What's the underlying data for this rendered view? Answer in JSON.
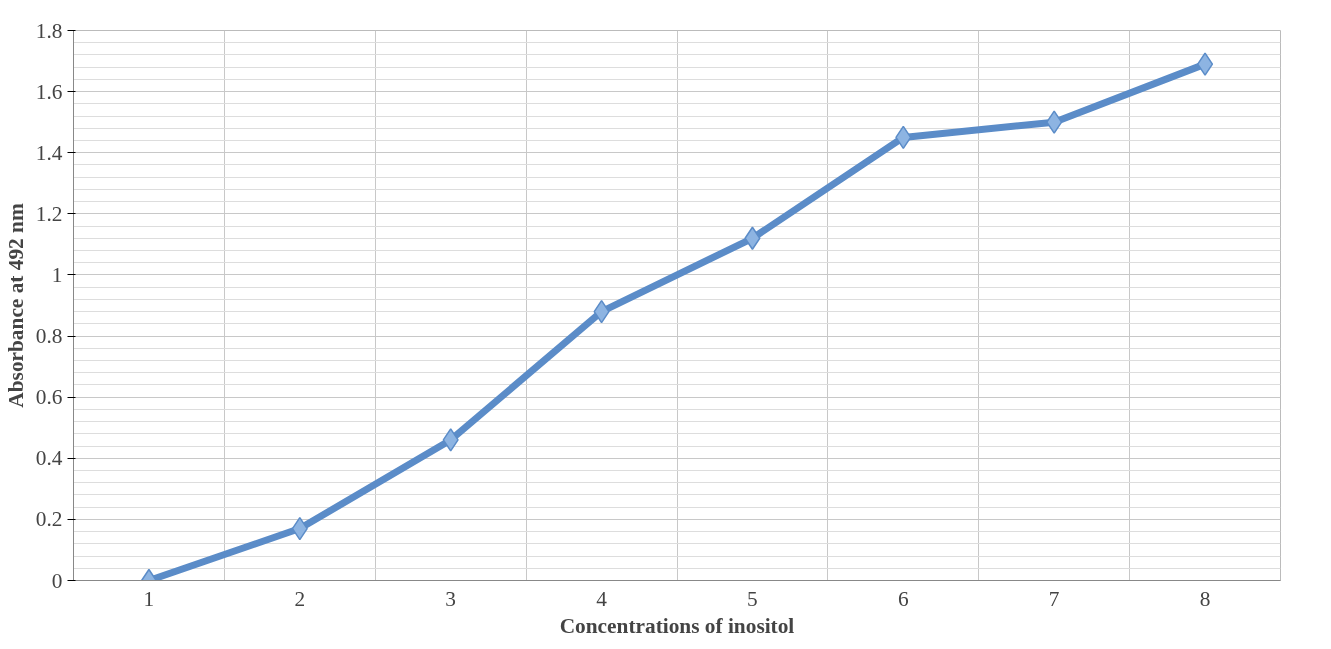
{
  "chart_data": {
    "type": "line",
    "xlabel": "Concentrations of inositol",
    "ylabel": "Absorbance at 492 nm",
    "categories": [
      "1",
      "2",
      "3",
      "4",
      "5",
      "6",
      "7",
      "8"
    ],
    "series": [
      {
        "color": "#5b8cc8",
        "values": [
          0,
          0.17,
          0.46,
          0.88,
          1.12,
          1.45,
          1.5,
          1.69
        ]
      }
    ],
    "ylim": [
      0,
      1.8
    ],
    "yticks": [
      0,
      0.2,
      0.4,
      0.6,
      0.8,
      1,
      1.2,
      1.4,
      1.6,
      1.8
    ],
    "grid": true,
    "marker": "diamond"
  }
}
